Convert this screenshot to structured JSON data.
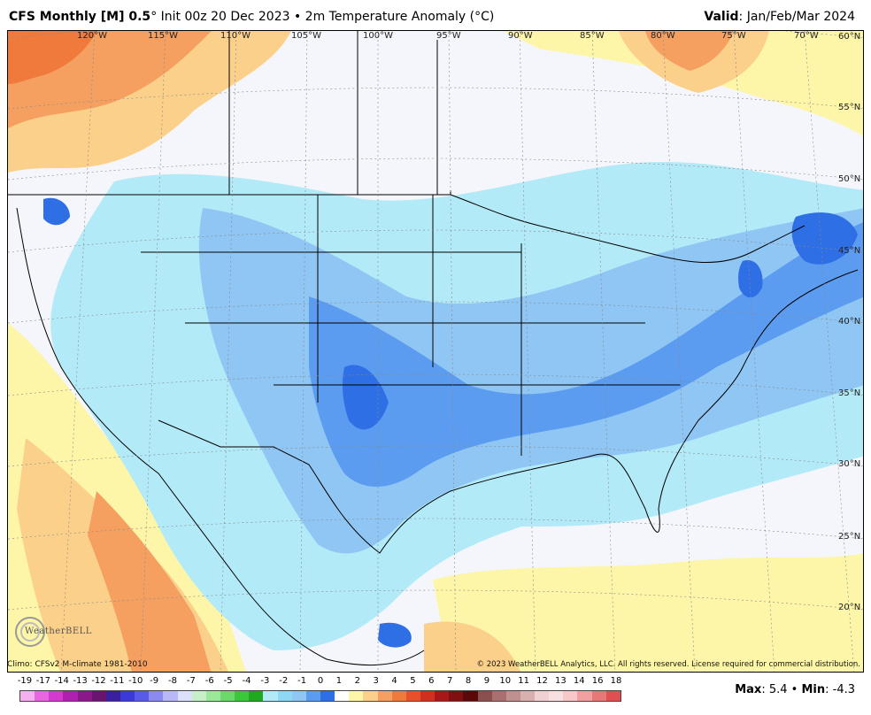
{
  "header": {
    "title_bold": "CFS Monthly [M] 0.5",
    "title_rest": "° Init 00z 20 Dec 2023 • 2m Temperature Anomaly (°C)",
    "valid_label": "Valid",
    "valid_value": ": Jan/Feb/Mar 2024"
  },
  "map": {
    "longitude_labels": [
      "120°W",
      "115°W",
      "110°W",
      "105°W",
      "100°W",
      "95°W",
      "90°W",
      "85°W",
      "80°W",
      "75°W",
      "70°W"
    ],
    "latitude_labels": [
      "60°N",
      "55°N",
      "50°N",
      "45°N",
      "40°N",
      "35°N",
      "30°N",
      "25°N",
      "20°N"
    ],
    "colors": {
      "ocean_neutral": "#f4f6fb",
      "pale_blue": "#b3eaf8",
      "light_blue": "#8fc6f4",
      "medium_blue": "#5b9cf0",
      "deep_blue": "#2f6fe6",
      "pale_yellow": "#fdf5a8",
      "light_orange": "#fbd08a",
      "orange": "#f5a060",
      "dark_orange": "#f07a3c"
    }
  },
  "footer": {
    "climo": "Climo: CFSv2 M-climate 1981-2010",
    "copyright": "© 2023 WeatherBELL Analytics, LLC. All rights reserved. License required for commercial distribution.",
    "logo_text": "WeatherBELL",
    "max_label": "Max",
    "max_value": ": 5.4 • ",
    "min_label": "Min",
    "min_value": ": -4.3"
  },
  "legend": {
    "labels": [
      "-19",
      "-17",
      "-14",
      "-13",
      "-12",
      "-11",
      "-10",
      "-9",
      "-8",
      "-7",
      "-6",
      "-5",
      "-4",
      "-3",
      "-2",
      "-1",
      "0",
      "1",
      "2",
      "3",
      "4",
      "5",
      "6",
      "7",
      "8",
      "9",
      "10",
      "11",
      "12",
      "13",
      "14",
      "16",
      "18"
    ],
    "colors": [
      "#f5b0f0",
      "#e866e0",
      "#d43ad0",
      "#b01fb0",
      "#8a1888",
      "#6a1470",
      "#3a1fa0",
      "#3a3ad8",
      "#5a5ae8",
      "#8a8af0",
      "#b8b8f8",
      "#dde0fb",
      "#c8f0c8",
      "#9ae89a",
      "#6ad86a",
      "#3ac83a",
      "#20a820",
      "#b3eaf8",
      "#8fd8f4",
      "#8fc6f4",
      "#5b9cf0",
      "#2f6fe6",
      "#ffffff",
      "#fdf5a8",
      "#fbd08a",
      "#f5a060",
      "#f07a3c",
      "#e8502a",
      "#d03020",
      "#a81818",
      "#801010",
      "#5a0808",
      "#8a5050",
      "#a87070",
      "#c09090",
      "#d8b0b0",
      "#f0d0d0",
      "#f8e0e0",
      "#f8c8c8",
      "#f0a0a0",
      "#e87878",
      "#e05050"
    ]
  }
}
